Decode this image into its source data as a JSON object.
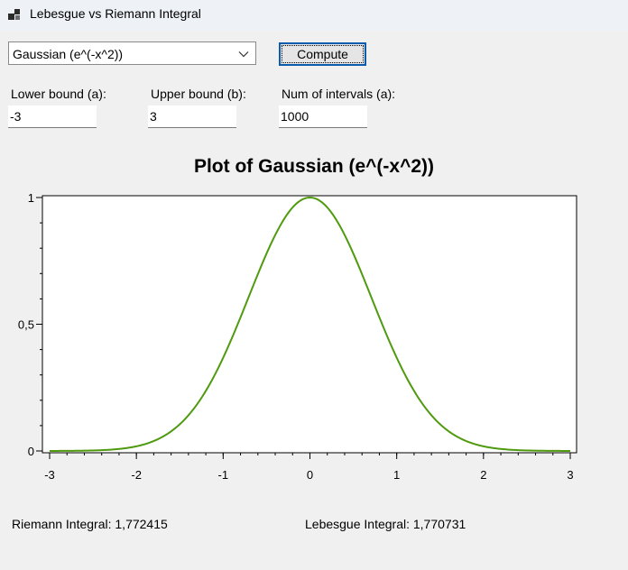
{
  "window": {
    "title": "Lebesgue vs Riemann Integral"
  },
  "controls": {
    "function_select": {
      "value": "Gaussian (e^(-x^2))"
    },
    "compute_label": "Compute",
    "lower": {
      "label": "Lower bound (a):",
      "value": "-3"
    },
    "upper": {
      "label": "Upper bound (b):",
      "value": "3"
    },
    "intervals": {
      "label": "Num of intervals (a):",
      "value": "1000"
    }
  },
  "chart_data": {
    "type": "line",
    "title": "Plot of Gaussian (e^(-x^2))",
    "function": "exp(-x^2)",
    "xlim": [
      -3,
      3
    ],
    "ylim": [
      0,
      1
    ],
    "x_ticks": [
      "-3",
      "-2",
      "-1",
      "0",
      "1",
      "2",
      "3"
    ],
    "y_ticks": [
      "0",
      "0,5",
      "1"
    ],
    "series": [
      {
        "color": "#4f9a0f",
        "x": [
          -3,
          -2.5,
          -2,
          -1.75,
          -1.5,
          -1.25,
          -1,
          -0.75,
          -0.5,
          -0.25,
          0,
          0.25,
          0.5,
          0.75,
          1,
          1.25,
          1.5,
          1.75,
          2,
          2.5,
          3
        ],
        "y": [
          0.0001,
          0.0019,
          0.0183,
          0.0468,
          0.1054,
          0.2096,
          0.3679,
          0.5698,
          0.7788,
          0.9394,
          1,
          0.9394,
          0.7788,
          0.5698,
          0.3679,
          0.2096,
          0.1054,
          0.0468,
          0.0183,
          0.0019,
          0.0001
        ]
      }
    ],
    "grid": false,
    "legend": "none"
  },
  "results": {
    "riemann": "Riemann Integral: 1,772415",
    "lebesgue": "Lebesgue Integral: 1,770731"
  }
}
